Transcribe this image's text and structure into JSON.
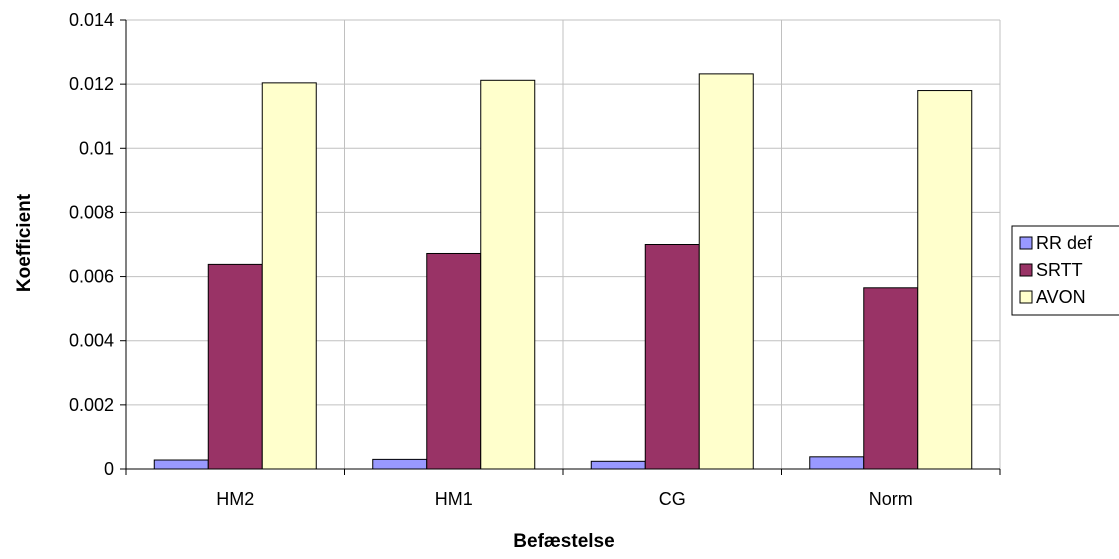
{
  "chart_data": {
    "type": "bar",
    "title": "",
    "xlabel": "Befæstelse",
    "ylabel": "Koefficient",
    "categories": [
      "HM2",
      "HM1",
      "CG",
      "Norm"
    ],
    "series": [
      {
        "name": "RR def",
        "color": "#9999ff",
        "values": [
          0.00028,
          0.0003,
          0.00024,
          0.00038
        ]
      },
      {
        "name": "SRTT",
        "color": "#993366",
        "values": [
          0.00638,
          0.00672,
          0.007,
          0.00565
        ]
      },
      {
        "name": "AVON",
        "color": "#ffffcc",
        "values": [
          0.01204,
          0.01212,
          0.01232,
          0.0118
        ]
      }
    ],
    "ylim": [
      0,
      0.014
    ],
    "yticks": [
      "0",
      "0.002",
      "0.004",
      "0.006",
      "0.008",
      "0.01",
      "0.012",
      "0.014"
    ],
    "grid": true,
    "legend_position": "right"
  }
}
